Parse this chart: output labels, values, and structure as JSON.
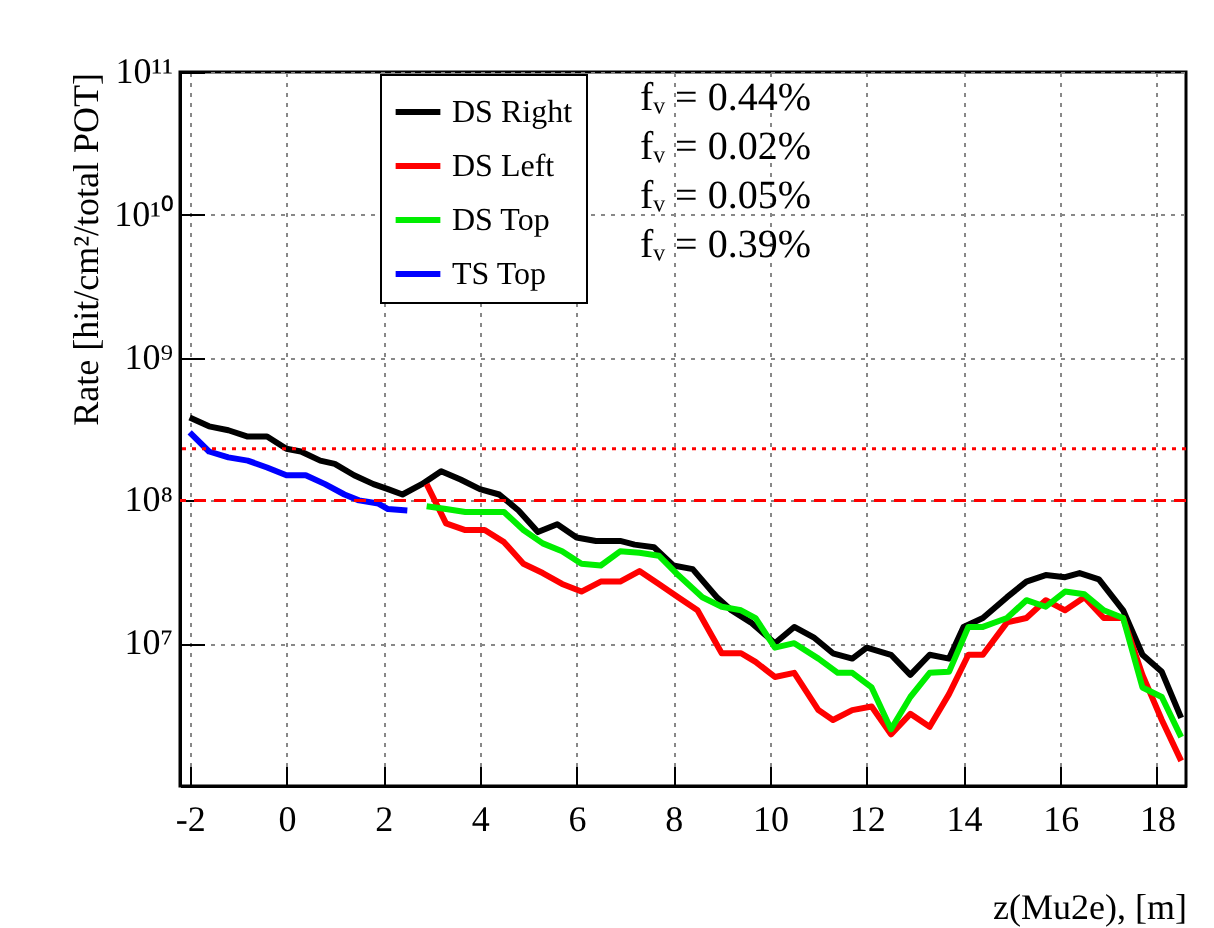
{
  "chart_data": {
    "type": "line",
    "xlabel": "z(Mu2e), [m]",
    "ylabel": "Rate [hit/cm²/total POT]",
    "xlim": [
      -2.2,
      18.6
    ],
    "xticks": [
      -2,
      0,
      2,
      4,
      6,
      8,
      10,
      12,
      14,
      16,
      18
    ],
    "ylim": [
      1000000,
      100000000000
    ],
    "yticks": [
      {
        "value": 1000000,
        "label": null
      },
      {
        "value": 10000000,
        "label": "10⁷"
      },
      {
        "value": 100000000,
        "label": "10⁸"
      },
      {
        "value": 1000000000,
        "label": "10⁹"
      },
      {
        "value": 10000000000,
        "label": "10¹⁰"
      },
      {
        "value": 100000000000,
        "label": "10¹¹"
      }
    ],
    "log": "y",
    "grid": true,
    "legend": "top",
    "line_style": "solid",
    "marker": "none",
    "annotations": [
      "fᵥ = 0.44%",
      "fᵥ = 0.02%",
      "fᵥ = 0.05%",
      "fᵥ = 0.39%"
    ],
    "ref_lines": [
      {
        "axis": "y",
        "value": 100000000,
        "color": "#ff0000",
        "line_style": "dashed"
      },
      {
        "axis": "y",
        "value": 230000000,
        "color": "#ff0000",
        "line_style": "dotted"
      }
    ],
    "series": [
      {
        "name": "DS Right",
        "color": "#000000",
        "x": [
          -2.0,
          -1.6,
          -1.2,
          -0.8,
          -0.4,
          0.0,
          0.3,
          0.7,
          1.0,
          1.4,
          1.8,
          2.1,
          2.4,
          2.8,
          3.2,
          3.6,
          4.0,
          4.4,
          4.8,
          5.2,
          5.6,
          6.0,
          6.4,
          6.9,
          7.2,
          7.6,
          8.0,
          8.4,
          8.9,
          9.2,
          9.6,
          10.1,
          10.5,
          10.9,
          11.3,
          11.7,
          12.0,
          12.5,
          12.9,
          13.3,
          13.7,
          14.0,
          14.4,
          14.9,
          15.3,
          15.7,
          16.1,
          16.4,
          16.8,
          17.3,
          17.7,
          18.1,
          18.5
        ],
        "values": [
          380000000,
          330000000,
          310000000,
          280000000,
          280000000,
          230000000,
          220000000,
          190000000,
          180000000,
          150000000,
          130000000,
          120000000,
          110000000,
          130000000,
          160000000,
          140000000,
          120000000,
          110000000,
          85000000,
          60000000,
          68000000,
          55000000,
          52000000,
          52000000,
          49000000,
          47000000,
          35000000,
          33000000,
          21000000,
          17000000,
          14000000,
          10000000,
          13000000,
          11000000,
          8500000,
          7800000,
          9300000,
          8300000,
          6000000,
          8300000,
          7800000,
          13000000,
          15000000,
          21000000,
          27000000,
          30000000,
          29000000,
          31000000,
          28000000,
          17000000,
          8300000,
          6300000,
          3000000
        ]
      },
      {
        "name": "DS Left",
        "color": "#ff0000",
        "x": [
          2.9,
          3.3,
          3.7,
          4.1,
          4.5,
          4.9,
          5.3,
          5.7,
          6.1,
          6.5,
          6.9,
          7.3,
          7.7,
          8.1,
          8.5,
          9.0,
          9.4,
          9.7,
          10.1,
          10.5,
          11.0,
          11.3,
          11.7,
          12.1,
          12.5,
          12.9,
          13.3,
          13.7,
          14.1,
          14.4,
          14.9,
          15.3,
          15.7,
          16.1,
          16.5,
          16.9,
          17.3,
          17.7,
          18.1,
          18.5
        ],
        "values": [
          130000000,
          69000000,
          62000000,
          62000000,
          51000000,
          36000000,
          31000000,
          26000000,
          23000000,
          27000000,
          27000000,
          32000000,
          26000000,
          21000000,
          17000000,
          8500000,
          8500000,
          7400000,
          5800000,
          6200000,
          3400000,
          2900000,
          3400000,
          3600000,
          2300000,
          3200000,
          2600000,
          4400000,
          8300000,
          8300000,
          14000000,
          15000000,
          20000000,
          17000000,
          21000000,
          15000000,
          15000000,
          6000000,
          2900000,
          1500000
        ]
      },
      {
        "name": "DS Top",
        "color": "#00ee00",
        "x": [
          2.9,
          3.3,
          3.7,
          4.1,
          4.5,
          4.9,
          5.3,
          5.7,
          6.1,
          6.5,
          6.9,
          7.3,
          7.7,
          8.1,
          8.6,
          9.0,
          9.4,
          9.7,
          10.1,
          10.5,
          11.0,
          11.4,
          11.7,
          12.1,
          12.5,
          12.9,
          13.3,
          13.7,
          14.1,
          14.4,
          14.9,
          15.3,
          15.7,
          16.1,
          16.5,
          16.9,
          17.3,
          17.7,
          18.1,
          18.5
        ],
        "values": [
          91000000,
          87000000,
          83000000,
          83000000,
          83000000,
          62000000,
          50000000,
          44000000,
          36000000,
          35000000,
          44000000,
          43000000,
          41000000,
          30000000,
          21000000,
          18000000,
          17000000,
          15000000,
          9300000,
          10000000,
          7800000,
          6200000,
          6200000,
          4900000,
          2500000,
          4200000,
          6200000,
          6300000,
          13000000,
          13000000,
          15000000,
          20000000,
          18000000,
          23000000,
          22000000,
          17000000,
          15000000,
          4900000,
          4200000,
          2200000
        ]
      },
      {
        "name": "TS Top",
        "color": "#0000ff",
        "x": [
          -2.0,
          -1.6,
          -1.2,
          -0.8,
          -0.4,
          0.0,
          0.4,
          0.8,
          1.2,
          1.5,
          1.9,
          2.1,
          2.5
        ],
        "values": [
          300000000,
          220000000,
          200000000,
          190000000,
          170000000,
          150000000,
          150000000,
          130000000,
          110000000,
          100000000,
          95000000,
          87000000,
          85000000
        ]
      }
    ]
  }
}
